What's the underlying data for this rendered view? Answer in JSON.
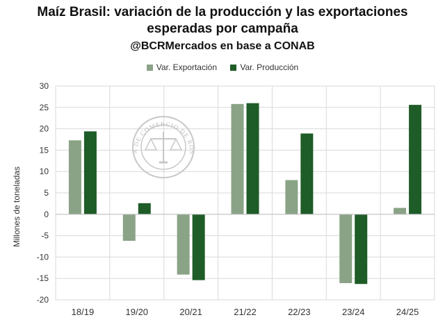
{
  "title_line1": "Maíz Brasil: variación de la producción y las exportaciones",
  "title_line2": "esperadas por campaña",
  "subtitle": "@BCRMercados en base a CONAB",
  "watermark_text": "BOLSA DE COMERCIO DE ROSARIO",
  "colors": {
    "export": "#8aa386",
    "production": "#1e5c28",
    "grid": "#d9d9d9",
    "axis": "#bfbfbf"
  },
  "chart_data": {
    "type": "bar",
    "categories": [
      "18/19",
      "19/20",
      "20/21",
      "21/22",
      "22/23",
      "23/24",
      "24/25"
    ],
    "series": [
      {
        "name": "Var. Exportación",
        "values": [
          17.3,
          -6.2,
          -14.1,
          25.8,
          8.0,
          -16.1,
          1.5
        ]
      },
      {
        "name": "Var. Producción",
        "values": [
          19.4,
          2.6,
          -15.4,
          26.0,
          18.9,
          -16.3,
          25.6
        ]
      }
    ],
    "ylabel": "Millones de toneladas",
    "ylim": [
      -20,
      30
    ],
    "yticks": [
      30,
      25,
      20,
      15,
      10,
      5,
      0,
      -5,
      -10,
      -15,
      -20
    ],
    "grid": true,
    "legend_position": "top-center"
  }
}
